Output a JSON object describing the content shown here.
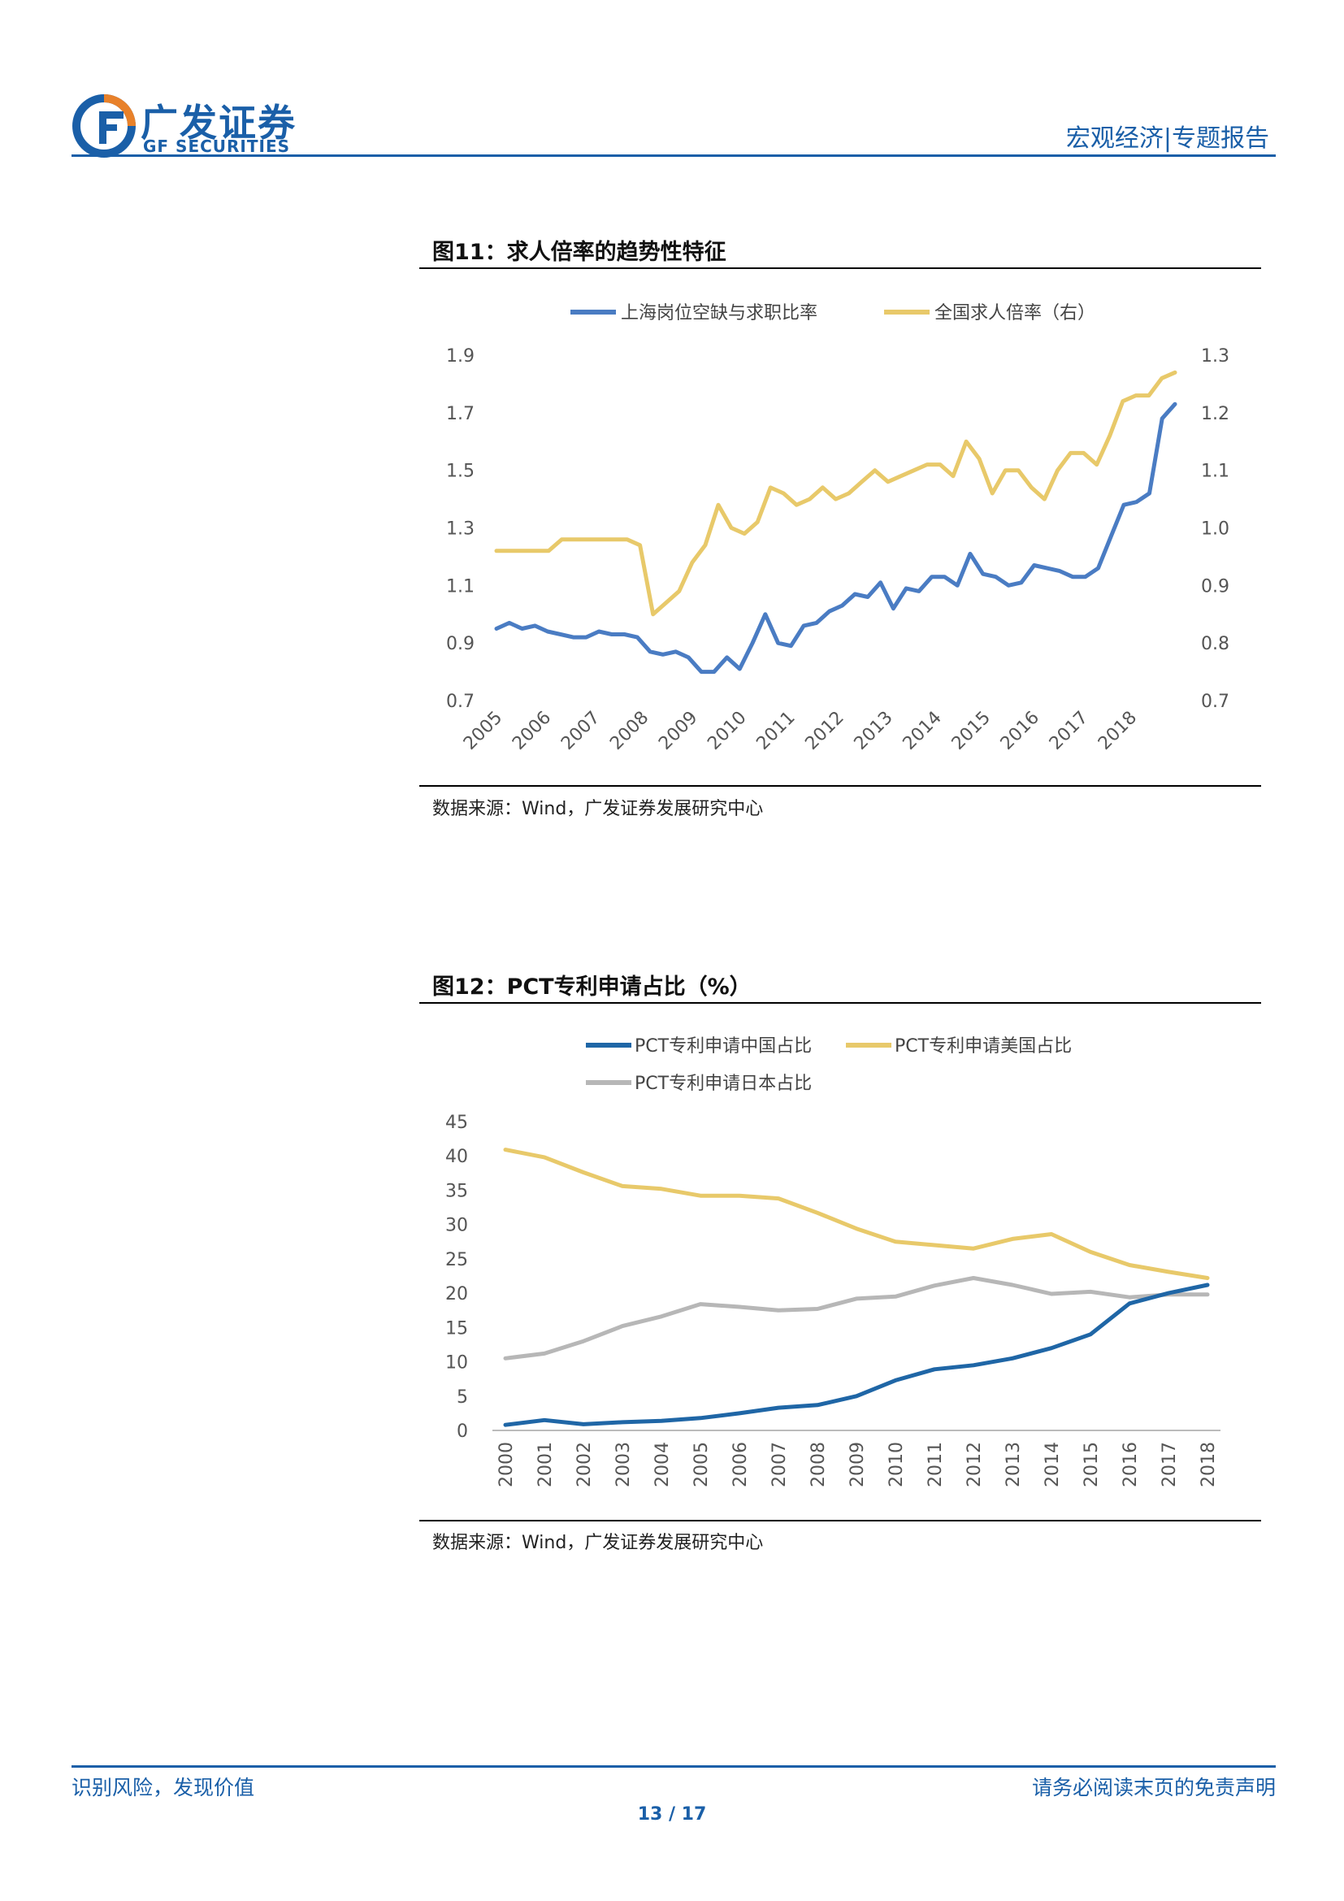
{
  "header": {
    "logo_cn": "广发证券",
    "logo_en": "GF SECURITIES",
    "section": "宏观经济|专题报告"
  },
  "figures": [
    {
      "title": "图11：求人倍率的趋势性特征",
      "source": "数据来源：Wind，广发证券发展研究中心"
    },
    {
      "title": "图12：PCT专利申请占比（%）",
      "source": "数据来源：Wind，广发证券发展研究中心"
    }
  ],
  "footer": {
    "left": "识别风险，发现价值",
    "right": "请务必阅读末页的免责声明",
    "page": "13 / 17"
  },
  "colors": {
    "blue": "#4a7cc3",
    "gold": "#e8c96a",
    "darkblue": "#1f66a6",
    "gray": "#b7b7b7",
    "brand": "#1a5fa8"
  },
  "chart_data": [
    {
      "type": "line",
      "title": "图11：求人倍率的趋势性特征",
      "x_start": 2005,
      "x_end": 2018.9,
      "xticks": [
        "2005",
        "2006",
        "2007",
        "2008",
        "2009",
        "2010",
        "2011",
        "2012",
        "2013",
        "2014",
        "2015",
        "2016",
        "2017",
        "2018"
      ],
      "ylim_left": [
        0.7,
        1.9
      ],
      "yticks_left": [
        "0.7",
        "0.9",
        "1.1",
        "1.3",
        "1.5",
        "1.7",
        "1.9"
      ],
      "ylim_right": [
        0.7,
        1.3
      ],
      "yticks_right": [
        "0.7",
        "0.8",
        "0.9",
        "1.0",
        "1.1",
        "1.2",
        "1.3"
      ],
      "series": [
        {
          "name": "上海岗位空缺与求职比率",
          "axis": "left",
          "values": [
            0.95,
            0.97,
            0.95,
            0.96,
            0.94,
            0.93,
            0.92,
            0.92,
            0.94,
            0.93,
            0.93,
            0.92,
            0.87,
            0.86,
            0.87,
            0.85,
            0.8,
            0.8,
            0.85,
            0.81,
            0.9,
            1.0,
            0.9,
            0.89,
            0.96,
            0.97,
            1.01,
            1.03,
            1.07,
            1.06,
            1.11,
            1.02,
            1.09,
            1.08,
            1.13,
            1.13,
            1.1,
            1.21,
            1.14,
            1.13,
            1.1,
            1.11,
            1.17,
            1.16,
            1.15,
            1.13,
            1.13,
            1.16,
            1.27,
            1.38,
            1.39,
            1.42,
            1.68,
            1.73
          ]
        },
        {
          "name": "全国求人倍率（右）",
          "axis": "right",
          "values": [
            0.96,
            0.96,
            0.96,
            0.96,
            0.96,
            0.98,
            0.98,
            0.98,
            0.98,
            0.98,
            0.98,
            0.97,
            0.85,
            0.87,
            0.89,
            0.94,
            0.97,
            1.04,
            1.0,
            0.99,
            1.01,
            1.07,
            1.06,
            1.04,
            1.05,
            1.07,
            1.05,
            1.06,
            1.08,
            1.1,
            1.08,
            1.09,
            1.1,
            1.11,
            1.11,
            1.09,
            1.15,
            1.12,
            1.06,
            1.1,
            1.1,
            1.07,
            1.05,
            1.1,
            1.13,
            1.13,
            1.11,
            1.16,
            1.22,
            1.23,
            1.23,
            1.26,
            1.27
          ]
        }
      ]
    },
    {
      "type": "line",
      "title": "图12：PCT专利申请占比（%）",
      "categories": [
        "2000",
        "2001",
        "2002",
        "2003",
        "2004",
        "2005",
        "2006",
        "2007",
        "2008",
        "2009",
        "2010",
        "2011",
        "2012",
        "2013",
        "2014",
        "2015",
        "2016",
        "2017",
        "2018"
      ],
      "ylim": [
        0,
        45
      ],
      "yticks": [
        "0",
        "5",
        "10",
        "15",
        "20",
        "25",
        "30",
        "35",
        "40",
        "45"
      ],
      "series": [
        {
          "name": "PCT专利申请中国占比",
          "values": [
            0.8,
            1.5,
            0.9,
            1.2,
            1.4,
            1.8,
            2.5,
            3.3,
            3.7,
            5.0,
            7.3,
            8.9,
            9.5,
            10.5,
            12.0,
            14.0,
            18.5,
            20.0,
            21.2
          ]
        },
        {
          "name": "PCT专利申请美国占比",
          "values": [
            40.9,
            39.8,
            37.6,
            35.6,
            35.2,
            34.2,
            34.2,
            33.8,
            31.7,
            29.4,
            27.5,
            27.0,
            26.5,
            27.9,
            28.6,
            26.0,
            24.1,
            23.1,
            22.2
          ]
        },
        {
          "name": "PCT专利申请日本占比",
          "values": [
            10.5,
            11.2,
            13.0,
            15.2,
            16.6,
            18.4,
            18.0,
            17.5,
            17.7,
            19.2,
            19.5,
            21.1,
            22.2,
            21.2,
            19.9,
            20.2,
            19.4,
            19.8,
            19.8
          ]
        }
      ]
    }
  ]
}
